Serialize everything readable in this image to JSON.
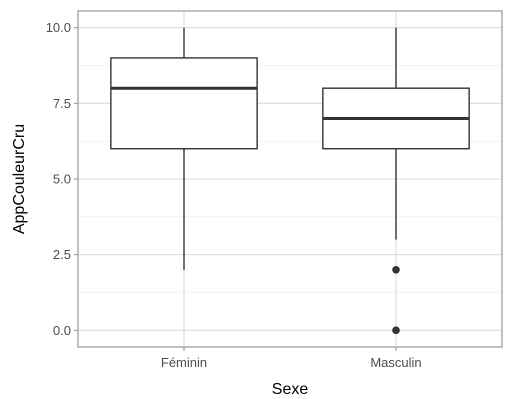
{
  "chart_data": {
    "type": "boxplot",
    "title": "",
    "xlabel": "Sexe",
    "ylabel": "AppCouleurCru",
    "ylim": [
      -0.55,
      10.55
    ],
    "y_ticks": [
      0.0,
      2.5,
      5.0,
      7.5,
      10.0
    ],
    "y_tick_labels": [
      "0.0",
      "2.5",
      "5.0",
      "7.5",
      "10.0"
    ],
    "y_minor_ticks": [
      1.25,
      3.75,
      6.25,
      8.75
    ],
    "grid": true,
    "legend": "none",
    "categories": [
      "Féminin",
      "Masculin"
    ],
    "boxes": [
      {
        "category": "Féminin",
        "whisker_low": 2,
        "q1": 6,
        "median": 8,
        "q3": 9,
        "whisker_high": 10,
        "outliers": []
      },
      {
        "category": "Masculin",
        "whisker_low": 3,
        "q1": 6,
        "median": 7,
        "q3": 8,
        "whisker_high": 10,
        "outliers": [
          2,
          0
        ]
      }
    ]
  }
}
